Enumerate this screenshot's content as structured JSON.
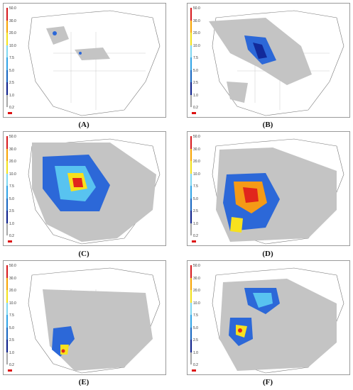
{
  "panels": [
    {
      "id": "A",
      "caption": "(A)"
    },
    {
      "id": "B",
      "caption": "(B)"
    },
    {
      "id": "C",
      "caption": "(C)"
    },
    {
      "id": "D",
      "caption": "(D)"
    },
    {
      "id": "E",
      "caption": "(E)"
    },
    {
      "id": "F",
      "caption": "(F)"
    }
  ],
  "scale": {
    "ticks": [
      "50.0",
      "30.0",
      "20.0",
      "10.0",
      "7.5",
      "5.0",
      "2.5",
      "1.0",
      "0.2"
    ],
    "colors": [
      "#d7191c",
      "#f7a400",
      "#f2e11b",
      "#7ed6f0",
      "#2fa3e6",
      "#1565c0",
      "#0b1f8a",
      "#a8a8a8"
    ]
  },
  "colors": {
    "gray": "#c4c4c4",
    "blue": "#2c68d8",
    "navy": "#122a9a",
    "cyan": "#58c3f0",
    "yellow": "#f7e11e",
    "orange": "#f59a16",
    "red": "#e1261c"
  }
}
